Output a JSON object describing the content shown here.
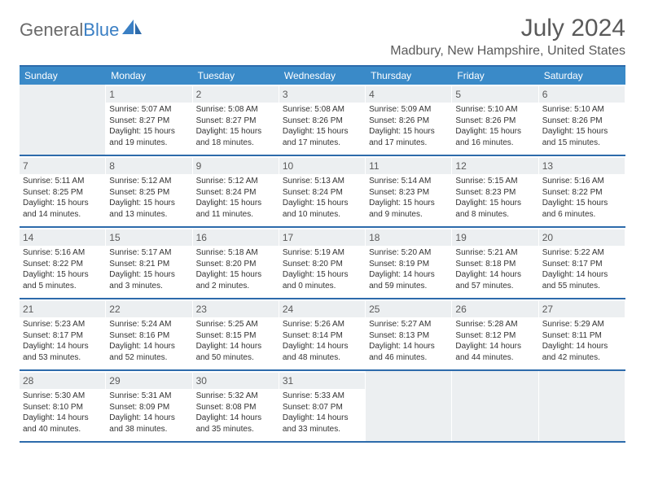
{
  "logo": {
    "text1": "General",
    "text2": "Blue"
  },
  "title": "July 2024",
  "location": "Madbury, New Hampshire, United States",
  "colors": {
    "headerBlue": "#3a8ac8",
    "ruleBlue": "#2d6bab",
    "daynumBg": "#eceff1",
    "textGray": "#5a5a5a",
    "bodyText": "#333333"
  },
  "weekdays": [
    "Sunday",
    "Monday",
    "Tuesday",
    "Wednesday",
    "Thursday",
    "Friday",
    "Saturday"
  ],
  "weeks": [
    [
      {
        "num": "",
        "sunrise": "",
        "sunset": "",
        "daylight": ""
      },
      {
        "num": "1",
        "sunrise": "Sunrise: 5:07 AM",
        "sunset": "Sunset: 8:27 PM",
        "daylight": "Daylight: 15 hours and 19 minutes."
      },
      {
        "num": "2",
        "sunrise": "Sunrise: 5:08 AM",
        "sunset": "Sunset: 8:27 PM",
        "daylight": "Daylight: 15 hours and 18 minutes."
      },
      {
        "num": "3",
        "sunrise": "Sunrise: 5:08 AM",
        "sunset": "Sunset: 8:26 PM",
        "daylight": "Daylight: 15 hours and 17 minutes."
      },
      {
        "num": "4",
        "sunrise": "Sunrise: 5:09 AM",
        "sunset": "Sunset: 8:26 PM",
        "daylight": "Daylight: 15 hours and 17 minutes."
      },
      {
        "num": "5",
        "sunrise": "Sunrise: 5:10 AM",
        "sunset": "Sunset: 8:26 PM",
        "daylight": "Daylight: 15 hours and 16 minutes."
      },
      {
        "num": "6",
        "sunrise": "Sunrise: 5:10 AM",
        "sunset": "Sunset: 8:26 PM",
        "daylight": "Daylight: 15 hours and 15 minutes."
      }
    ],
    [
      {
        "num": "7",
        "sunrise": "Sunrise: 5:11 AM",
        "sunset": "Sunset: 8:25 PM",
        "daylight": "Daylight: 15 hours and 14 minutes."
      },
      {
        "num": "8",
        "sunrise": "Sunrise: 5:12 AM",
        "sunset": "Sunset: 8:25 PM",
        "daylight": "Daylight: 15 hours and 13 minutes."
      },
      {
        "num": "9",
        "sunrise": "Sunrise: 5:12 AM",
        "sunset": "Sunset: 8:24 PM",
        "daylight": "Daylight: 15 hours and 11 minutes."
      },
      {
        "num": "10",
        "sunrise": "Sunrise: 5:13 AM",
        "sunset": "Sunset: 8:24 PM",
        "daylight": "Daylight: 15 hours and 10 minutes."
      },
      {
        "num": "11",
        "sunrise": "Sunrise: 5:14 AM",
        "sunset": "Sunset: 8:23 PM",
        "daylight": "Daylight: 15 hours and 9 minutes."
      },
      {
        "num": "12",
        "sunrise": "Sunrise: 5:15 AM",
        "sunset": "Sunset: 8:23 PM",
        "daylight": "Daylight: 15 hours and 8 minutes."
      },
      {
        "num": "13",
        "sunrise": "Sunrise: 5:16 AM",
        "sunset": "Sunset: 8:22 PM",
        "daylight": "Daylight: 15 hours and 6 minutes."
      }
    ],
    [
      {
        "num": "14",
        "sunrise": "Sunrise: 5:16 AM",
        "sunset": "Sunset: 8:22 PM",
        "daylight": "Daylight: 15 hours and 5 minutes."
      },
      {
        "num": "15",
        "sunrise": "Sunrise: 5:17 AM",
        "sunset": "Sunset: 8:21 PM",
        "daylight": "Daylight: 15 hours and 3 minutes."
      },
      {
        "num": "16",
        "sunrise": "Sunrise: 5:18 AM",
        "sunset": "Sunset: 8:20 PM",
        "daylight": "Daylight: 15 hours and 2 minutes."
      },
      {
        "num": "17",
        "sunrise": "Sunrise: 5:19 AM",
        "sunset": "Sunset: 8:20 PM",
        "daylight": "Daylight: 15 hours and 0 minutes."
      },
      {
        "num": "18",
        "sunrise": "Sunrise: 5:20 AM",
        "sunset": "Sunset: 8:19 PM",
        "daylight": "Daylight: 14 hours and 59 minutes."
      },
      {
        "num": "19",
        "sunrise": "Sunrise: 5:21 AM",
        "sunset": "Sunset: 8:18 PM",
        "daylight": "Daylight: 14 hours and 57 minutes."
      },
      {
        "num": "20",
        "sunrise": "Sunrise: 5:22 AM",
        "sunset": "Sunset: 8:17 PM",
        "daylight": "Daylight: 14 hours and 55 minutes."
      }
    ],
    [
      {
        "num": "21",
        "sunrise": "Sunrise: 5:23 AM",
        "sunset": "Sunset: 8:17 PM",
        "daylight": "Daylight: 14 hours and 53 minutes."
      },
      {
        "num": "22",
        "sunrise": "Sunrise: 5:24 AM",
        "sunset": "Sunset: 8:16 PM",
        "daylight": "Daylight: 14 hours and 52 minutes."
      },
      {
        "num": "23",
        "sunrise": "Sunrise: 5:25 AM",
        "sunset": "Sunset: 8:15 PM",
        "daylight": "Daylight: 14 hours and 50 minutes."
      },
      {
        "num": "24",
        "sunrise": "Sunrise: 5:26 AM",
        "sunset": "Sunset: 8:14 PM",
        "daylight": "Daylight: 14 hours and 48 minutes."
      },
      {
        "num": "25",
        "sunrise": "Sunrise: 5:27 AM",
        "sunset": "Sunset: 8:13 PM",
        "daylight": "Daylight: 14 hours and 46 minutes."
      },
      {
        "num": "26",
        "sunrise": "Sunrise: 5:28 AM",
        "sunset": "Sunset: 8:12 PM",
        "daylight": "Daylight: 14 hours and 44 minutes."
      },
      {
        "num": "27",
        "sunrise": "Sunrise: 5:29 AM",
        "sunset": "Sunset: 8:11 PM",
        "daylight": "Daylight: 14 hours and 42 minutes."
      }
    ],
    [
      {
        "num": "28",
        "sunrise": "Sunrise: 5:30 AM",
        "sunset": "Sunset: 8:10 PM",
        "daylight": "Daylight: 14 hours and 40 minutes."
      },
      {
        "num": "29",
        "sunrise": "Sunrise: 5:31 AM",
        "sunset": "Sunset: 8:09 PM",
        "daylight": "Daylight: 14 hours and 38 minutes."
      },
      {
        "num": "30",
        "sunrise": "Sunrise: 5:32 AM",
        "sunset": "Sunset: 8:08 PM",
        "daylight": "Daylight: 14 hours and 35 minutes."
      },
      {
        "num": "31",
        "sunrise": "Sunrise: 5:33 AM",
        "sunset": "Sunset: 8:07 PM",
        "daylight": "Daylight: 14 hours and 33 minutes."
      },
      {
        "num": "",
        "sunrise": "",
        "sunset": "",
        "daylight": ""
      },
      {
        "num": "",
        "sunrise": "",
        "sunset": "",
        "daylight": ""
      },
      {
        "num": "",
        "sunrise": "",
        "sunset": "",
        "daylight": ""
      }
    ]
  ]
}
